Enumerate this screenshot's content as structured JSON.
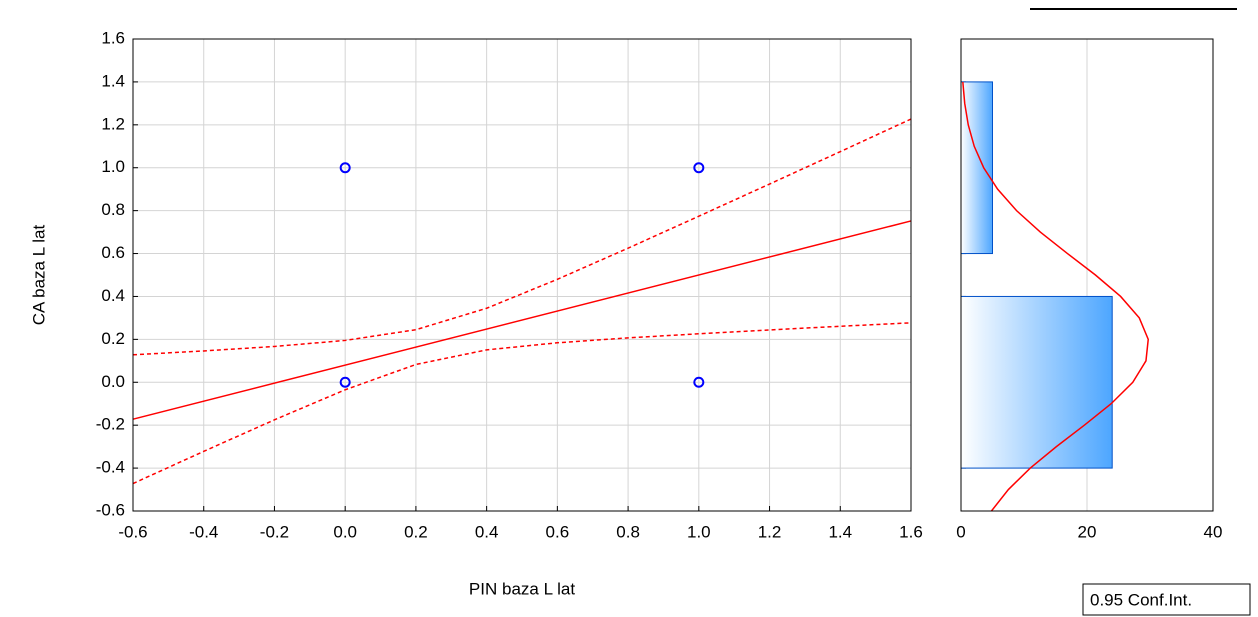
{
  "chart_data": [
    {
      "type": "scatter",
      "xlabel": "PIN baza L lat",
      "ylabel": "CA baza L lat",
      "xlim": [
        -0.6,
        1.6
      ],
      "xticks": [
        -0.6,
        -0.4,
        -0.2,
        {
          "value": 0,
          "label": "0.0"
        },
        0.2,
        0.4,
        0.6,
        0.8,
        {
          "value": 1,
          "label": "1.0"
        },
        1.2,
        1.4,
        1.6
      ],
      "ylim": [
        -0.6,
        1.6
      ],
      "yticks": [
        -0.6,
        -0.4,
        -0.2,
        {
          "value": 0,
          "label": "0.0"
        },
        0.2,
        0.4,
        0.6,
        0.8,
        {
          "value": 1,
          "label": "1.0"
        },
        1.2,
        1.4,
        1.6
      ],
      "grid": true,
      "points": {
        "x": [
          0,
          1,
          0,
          1
        ],
        "y": [
          1,
          1,
          0,
          0
        ],
        "color": "#0000ff"
      },
      "fit": {
        "x": [
          -0.6,
          1.6
        ],
        "y": [
          -0.172,
          0.752
        ],
        "color": "#ff0000"
      },
      "conf_band": {
        "name": "0.95 Conf.Int.",
        "color": "#ff0000",
        "x": [
          -0.6,
          -0.4,
          -0.2,
          0,
          0.2,
          0.4,
          0.6,
          0.8,
          1.0,
          1.2,
          1.4,
          1.6
        ],
        "upper": [
          0.128,
          0.146,
          0.167,
          0.195,
          0.245,
          0.345,
          0.48,
          0.625,
          0.774,
          0.924,
          1.075,
          1.227
        ],
        "lower": [
          -0.472,
          -0.322,
          -0.175,
          -0.035,
          0.083,
          0.151,
          0.184,
          0.207,
          0.226,
          0.244,
          0.261,
          0.277
        ]
      },
      "legend": "bottom-right"
    },
    {
      "type": "histogram",
      "orientation": "horizontal",
      "bins": [
        -0.4,
        0.4,
        0.6,
        1.4
      ],
      "counts": [
        24,
        0,
        5
      ],
      "color": "#4da6ff",
      "edge_color": "#0050c8",
      "xlim": [
        0,
        40
      ],
      "xticks": [
        0,
        20,
        40
      ],
      "ylim": [
        -0.6,
        1.6
      ],
      "grid": true,
      "curve": {
        "color": "#ff0000",
        "y": [
          -0.6,
          -0.5,
          -0.4,
          -0.3,
          -0.2,
          -0.1,
          0,
          0.1,
          0.2,
          0.3,
          0.4,
          0.5,
          0.6,
          0.7,
          0.8,
          0.9,
          1.0,
          1.1,
          1.2,
          1.3,
          1.4
        ],
        "x": [
          4.83,
          7.52,
          11.0,
          15.14,
          19.58,
          23.83,
          27.27,
          29.36,
          29.72,
          28.3,
          25.34,
          21.34,
          16.9,
          12.59,
          8.82,
          5.81,
          3.6,
          2.1,
          1.15,
          0.59,
          0.29
        ]
      }
    }
  ]
}
